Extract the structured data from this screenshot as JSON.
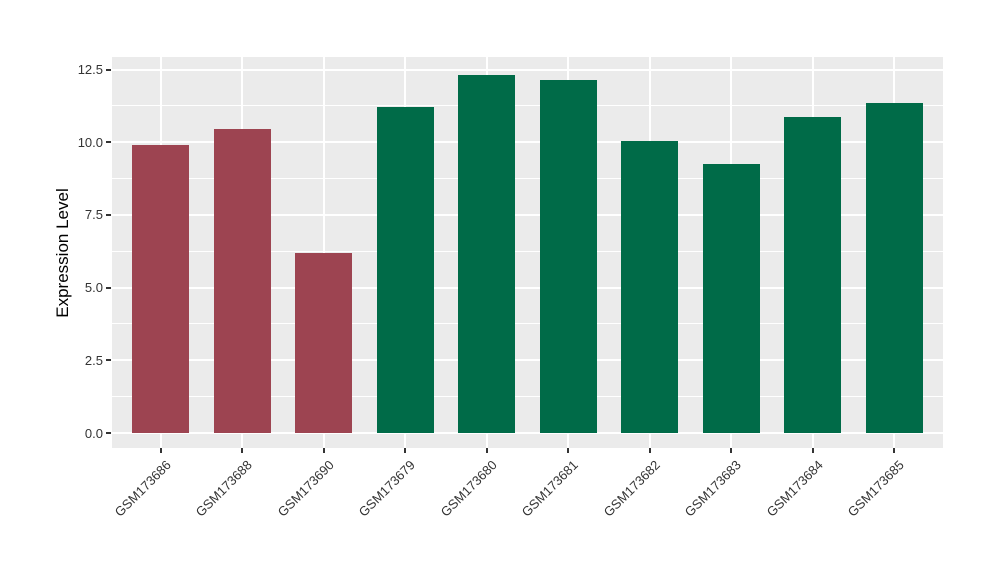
{
  "chart_data": {
    "type": "bar",
    "title": "",
    "ylabel": "Expression Level",
    "xlabel": "",
    "categories": [
      "GSM173686",
      "GSM173688",
      "GSM173690",
      "GSM173679",
      "GSM173680",
      "GSM173681",
      "GSM173682",
      "GSM173683",
      "GSM173684",
      "GSM173685"
    ],
    "values": [
      9.9,
      10.45,
      6.2,
      11.2,
      12.3,
      12.15,
      10.05,
      9.25,
      10.85,
      11.35
    ],
    "groups": [
      "red",
      "red",
      "red",
      "green",
      "green",
      "green",
      "green",
      "green",
      "green",
      "green"
    ],
    "group_colors": {
      "red": "#9d4451",
      "green": "#006b48"
    },
    "ylim": [
      0,
      12.5
    ],
    "yticks": [
      0.0,
      2.5,
      5.0,
      7.5,
      10.0,
      12.5
    ],
    "ytick_labels": [
      "0.0",
      "2.5",
      "5.0",
      "7.5",
      "10.0",
      "12.5"
    ],
    "yticks_minor": [
      1.25,
      3.75,
      6.25,
      8.75,
      11.25
    ],
    "grid": true,
    "legend_position": "none",
    "panel_bg": "#ebebeb",
    "grid_color": "#ffffff",
    "axis_text_color": "#333333",
    "axis_title_color": "#000000"
  }
}
